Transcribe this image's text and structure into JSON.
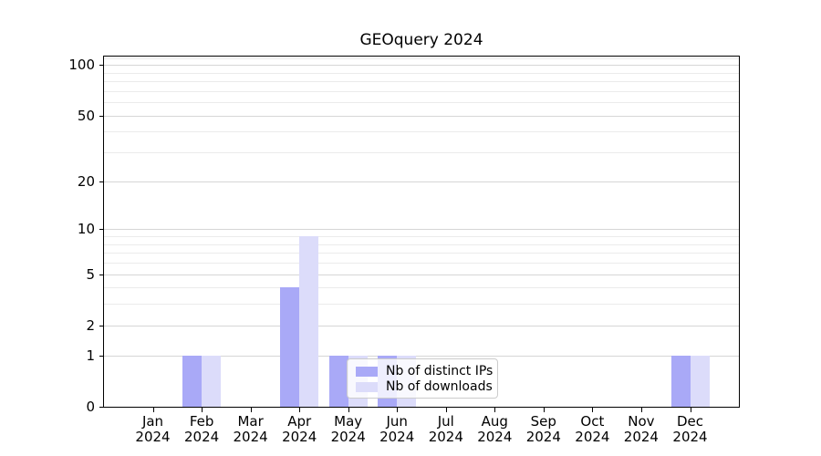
{
  "title": "GEOquery 2024",
  "chart_data": {
    "type": "bar",
    "title": "GEOquery 2024",
    "scale": "log10(1+x)",
    "categories": [
      "Jan",
      "Feb",
      "Mar",
      "Apr",
      "May",
      "Jun",
      "Jul",
      "Aug",
      "Sep",
      "Oct",
      "Nov",
      "Dec"
    ],
    "year_label": "2024",
    "series": [
      {
        "name": "Nb of distinct IPs",
        "color": "#a9a9f7",
        "values": [
          0,
          1,
          0,
          4,
          1,
          1,
          0,
          0,
          0,
          0,
          0,
          1
        ]
      },
      {
        "name": "Nb of downloads",
        "color": "#dcdcfa",
        "values": [
          0,
          1,
          0,
          9,
          1,
          1,
          0,
          0,
          0,
          0,
          0,
          1
        ]
      }
    ],
    "y_ticks": [
      0,
      1,
      2,
      5,
      10,
      20,
      50,
      100
    ],
    "y_minor_ticks": [
      3,
      4,
      6,
      7,
      8,
      9,
      30,
      40,
      60,
      70,
      80,
      90,
      110
    ],
    "ylim": [
      0,
      112
    ],
    "xlabel": "",
    "ylabel": "",
    "grid": "horizontal",
    "legend_position": "lower-center-inside"
  },
  "legend": {
    "items": [
      {
        "label": "Nb of distinct IPs"
      },
      {
        "label": "Nb of downloads"
      }
    ]
  },
  "colors": {
    "distinct_ips": "#a9a9f7",
    "downloads": "#dcdcfa",
    "grid_major": "#d6d6d6",
    "grid_minor": "#ebebeb",
    "spine": "#000000",
    "legend_border": "#cccccc"
  }
}
